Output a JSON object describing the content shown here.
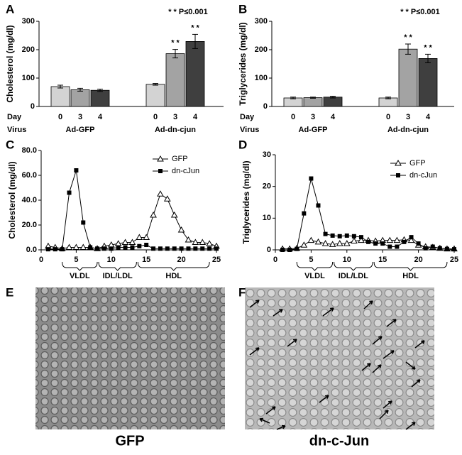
{
  "chart_data": [
    {
      "type": "bar",
      "label": "A",
      "annotation": "* * P≤0.001",
      "ylabel": "Cholesterol (mg/dl)",
      "category_row": "Day",
      "group_row": "Virus",
      "groups": [
        "Ad-GFP",
        "Ad-dn-cjun"
      ],
      "categories": [
        "0",
        "3",
        "4",
        "0",
        "3",
        "4"
      ],
      "values": [
        70,
        59,
        57,
        78,
        186,
        229
      ],
      "errors": [
        5,
        5,
        4,
        3,
        15,
        25
      ],
      "significance": [
        null,
        null,
        null,
        null,
        "* *",
        "* *"
      ],
      "colors": [
        "#d3d3d3",
        "#a3a3a3",
        "#3f3f3f",
        "#d3d3d3",
        "#a3a3a3",
        "#3f3f3f"
      ],
      "ylim": [
        0,
        300
      ],
      "yticks": [
        0,
        100,
        200,
        300
      ]
    },
    {
      "type": "bar",
      "label": "B",
      "annotation": "* * P≤0.001",
      "ylabel": "Triglycerides (mg/dl)",
      "category_row": "Day",
      "group_row": "Virus",
      "groups": [
        "Ad-GFP",
        "Ad-dn-cjun"
      ],
      "categories": [
        "0",
        "3",
        "4",
        "0",
        "3",
        "4"
      ],
      "values": [
        30,
        31,
        33,
        30,
        202,
        169
      ],
      "errors": [
        3,
        2,
        3,
        3,
        18,
        15
      ],
      "significance": [
        null,
        null,
        null,
        null,
        "* *",
        "* *"
      ],
      "colors": [
        "#d3d3d3",
        "#a3a3a3",
        "#3f3f3f",
        "#d3d3d3",
        "#a3a3a3",
        "#3f3f3f"
      ],
      "ylim": [
        0,
        300
      ],
      "yticks": [
        0,
        100,
        200,
        300
      ]
    },
    {
      "type": "line",
      "label": "C",
      "ylabel": "Cholesterol (mg/dl)",
      "legend": "top-right",
      "x": [
        1,
        2,
        3,
        4,
        5,
        6,
        7,
        8,
        9,
        10,
        11,
        12,
        13,
        14,
        15,
        16,
        17,
        18,
        19,
        20,
        21,
        22,
        23,
        24,
        25
      ],
      "series": [
        {
          "name": "GFP",
          "color": "#000000",
          "marker": "triangle-open",
          "values": [
            3,
            2,
            1,
            2,
            2,
            2,
            2,
            1,
            3,
            4,
            5,
            6,
            6,
            10,
            10,
            28,
            45,
            41,
            28,
            16,
            8,
            6,
            6,
            5,
            3
          ]
        },
        {
          "name": "dn-cJun",
          "color": "#000000",
          "marker": "square",
          "values": [
            0.5,
            0.5,
            0.5,
            46,
            64,
            22,
            2,
            1,
            1,
            1,
            2,
            2,
            2,
            3,
            4,
            1,
            1,
            1,
            1,
            1,
            1,
            1,
            1,
            1,
            1
          ]
        }
      ],
      "xlim": [
        0,
        25
      ],
      "xticks": [
        0,
        5,
        10,
        15,
        20,
        25
      ],
      "ylim": [
        0,
        80
      ],
      "yticks": [
        {
          "value": 0,
          "label": "0.0"
        },
        {
          "value": 20,
          "label": "20.0"
        },
        {
          "value": 40,
          "label": "40.0"
        },
        {
          "value": 60,
          "label": "60.0"
        },
        {
          "value": 80,
          "label": "80.0"
        }
      ],
      "regions": [
        "VLDL",
        "IDL/LDL",
        "HDL"
      ]
    },
    {
      "type": "line",
      "label": "D",
      "ylabel": "Triglycerides (mg/dl)",
      "legend": "top-right",
      "x": [
        1,
        2,
        3,
        4,
        5,
        6,
        7,
        8,
        9,
        10,
        11,
        12,
        13,
        14,
        15,
        16,
        17,
        18,
        19,
        20,
        21,
        22,
        23,
        24,
        25
      ],
      "series": [
        {
          "name": "GFP",
          "color": "#000000",
          "marker": "triangle-open",
          "values": [
            0.3,
            0.3,
            0.5,
            1.5,
            3,
            2.5,
            2,
            1.7,
            2,
            2,
            2.8,
            3,
            3,
            2.8,
            3,
            3,
            3,
            3.2,
            3,
            1.5,
            1,
            0.8,
            0.5,
            0.3,
            0.3
          ]
        },
        {
          "name": "dn-cJun",
          "color": "#000000",
          "marker": "square",
          "values": [
            0,
            0,
            0.3,
            11.5,
            22.5,
            14,
            5,
            4.5,
            4.3,
            4.5,
            4.3,
            4,
            2.5,
            2,
            2,
            1,
            1,
            2.5,
            4,
            2,
            0.5,
            1,
            0.5,
            0.3,
            0.2
          ]
        }
      ],
      "xlim": [
        0,
        25
      ],
      "xticks": [
        0,
        5,
        10,
        15,
        20,
        25
      ],
      "ylim": [
        0,
        30
      ],
      "yticks": [
        0,
        10,
        20,
        30
      ],
      "regions": [
        "VLDL",
        "IDL/LDL",
        "HDL"
      ]
    }
  ],
  "images": [
    {
      "label": "E",
      "caption": "GFP"
    },
    {
      "label": "F",
      "caption": "dn-c-Jun"
    }
  ]
}
